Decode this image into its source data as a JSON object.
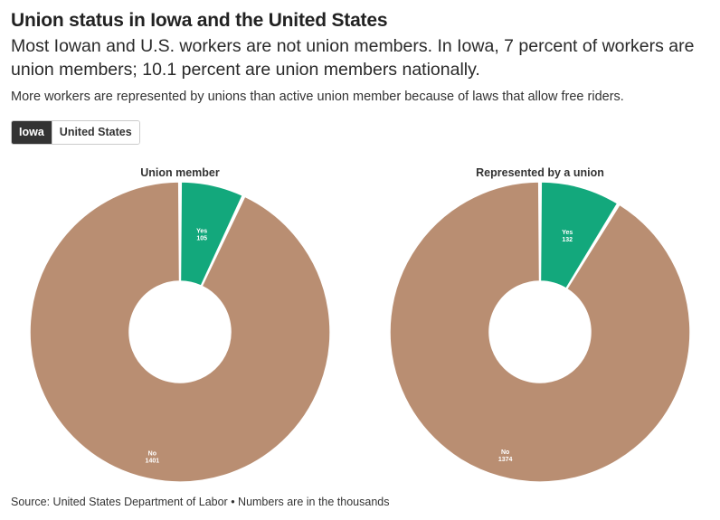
{
  "header": {
    "title": "Union status in Iowa and the United States",
    "subtitle": "Most Iowan and U.S. workers are not union members. In Iowa, 7 percent of workers are union members; 10.1 percent are union members nationally.",
    "note": "More workers are represented by unions than active union member because of laws that allow free riders."
  },
  "tabs": [
    {
      "label": "Iowa",
      "active": true
    },
    {
      "label": "United States",
      "active": false
    }
  ],
  "colors": {
    "yes": "#13a87c",
    "no": "#b98e72",
    "label": "#ffffff"
  },
  "chart_data": [
    {
      "type": "pie",
      "title": "Union member",
      "slices": [
        {
          "label": "Yes",
          "value": 105
        },
        {
          "label": "No",
          "value": 1401
        }
      ]
    },
    {
      "type": "pie",
      "title": "Represented by a union",
      "slices": [
        {
          "label": "Yes",
          "value": 132
        },
        {
          "label": "No",
          "value": 1374
        }
      ]
    }
  ],
  "footer": {
    "source": "Source: United States Department of Labor • Numbers are in the thousands"
  }
}
